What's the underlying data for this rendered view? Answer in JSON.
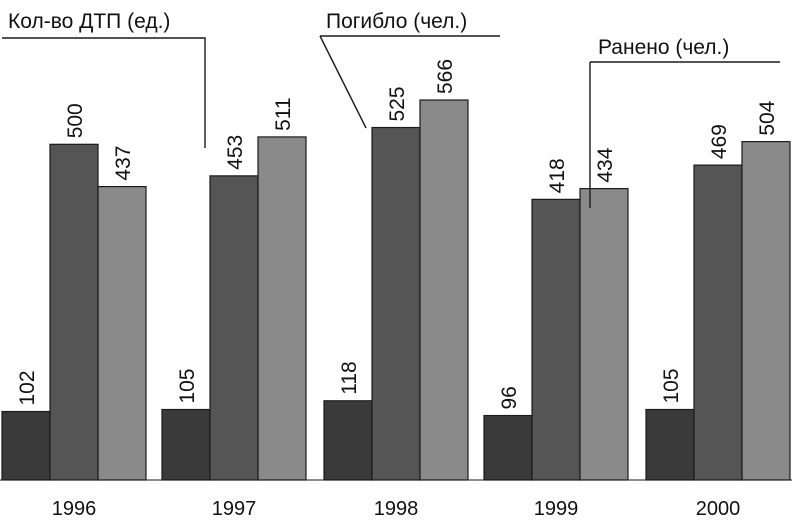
{
  "chart_data": {
    "type": "bar",
    "categories": [
      "1996",
      "1997",
      "1998",
      "1999",
      "2000"
    ],
    "series": [
      {
        "name": "Кол-во ДТП (ед.)",
        "values": [
          102,
          105,
          118,
          96,
          105
        ],
        "color": "#3a3a3a"
      },
      {
        "name": "Погибло (чел.)",
        "values": [
          500,
          453,
          525,
          418,
          469
        ],
        "color": "#555555"
      },
      {
        "name": "Ранено (чел.)",
        "values": [
          437,
          511,
          566,
          434,
          504
        ],
        "color": "#8a8a8a"
      }
    ],
    "title": "",
    "xlabel": "",
    "ylabel": "",
    "ylim": [
      0,
      600
    ],
    "grid": false,
    "data_labels": true,
    "value_labels_rotated": true
  }
}
